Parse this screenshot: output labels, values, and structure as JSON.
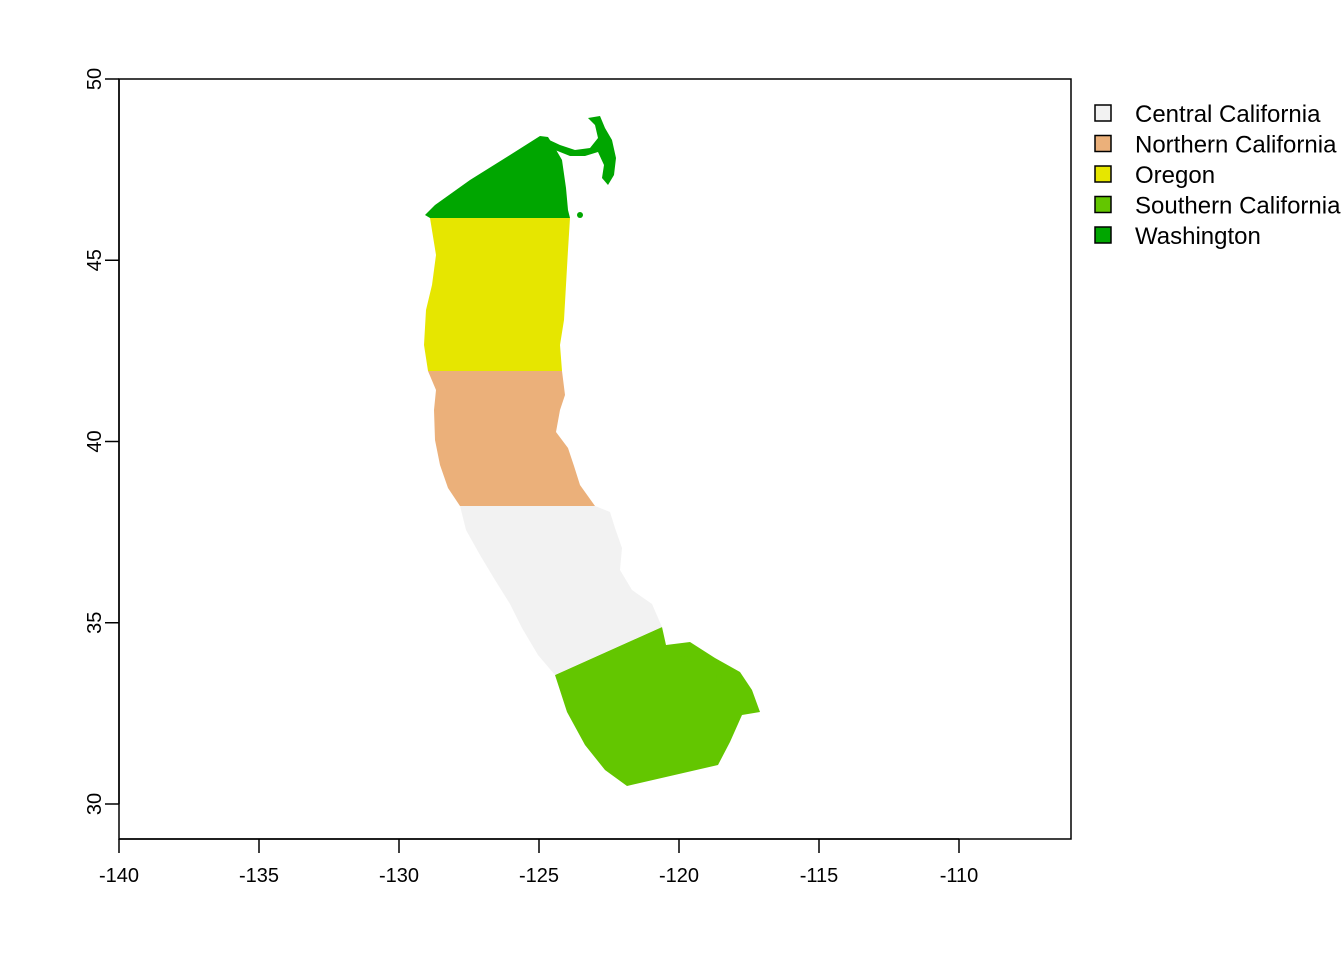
{
  "map": {
    "x_axis": {
      "range": [
        -140,
        -106
      ],
      "ticks": [
        "-140",
        "-135",
        "-130",
        "-125",
        "-120",
        "-115",
        "-110"
      ],
      "tick_values": [
        -140,
        -135,
        -130,
        -125,
        -120,
        -115,
        -110
      ]
    },
    "y_axis": {
      "range": [
        29,
        50
      ],
      "ticks": [
        "30",
        "35",
        "40",
        "45",
        "50"
      ],
      "tick_values": [
        30,
        35,
        40,
        45,
        50
      ]
    },
    "legend": {
      "placement": "right, outside plot",
      "entries": [
        {
          "label": "Central California",
          "color": "#f2f2f2"
        },
        {
          "label": "Northern California",
          "color": "#ebb07a"
        },
        {
          "label": "Oregon",
          "color": "#e6e600"
        },
        {
          "label": "Southern California",
          "color": "#63c600"
        },
        {
          "label": "Washington",
          "color": "#00a600"
        }
      ]
    },
    "regions": [
      {
        "name": "Washington",
        "color": "#00a600",
        "lat_range": [
          46.2,
          48.5
        ]
      },
      {
        "name": "Oregon",
        "color": "#e6e600",
        "lat_range": [
          42.0,
          46.2
        ]
      },
      {
        "name": "Northern California",
        "color": "#ebb07a",
        "lat_range": [
          38.3,
          42.0
        ]
      },
      {
        "name": "Central California",
        "color": "#f2f2f2",
        "lat_range": [
          34.5,
          38.3
        ]
      },
      {
        "name": "Southern California",
        "color": "#63c600",
        "lat_range": [
          30.5,
          34.9
        ]
      }
    ]
  }
}
